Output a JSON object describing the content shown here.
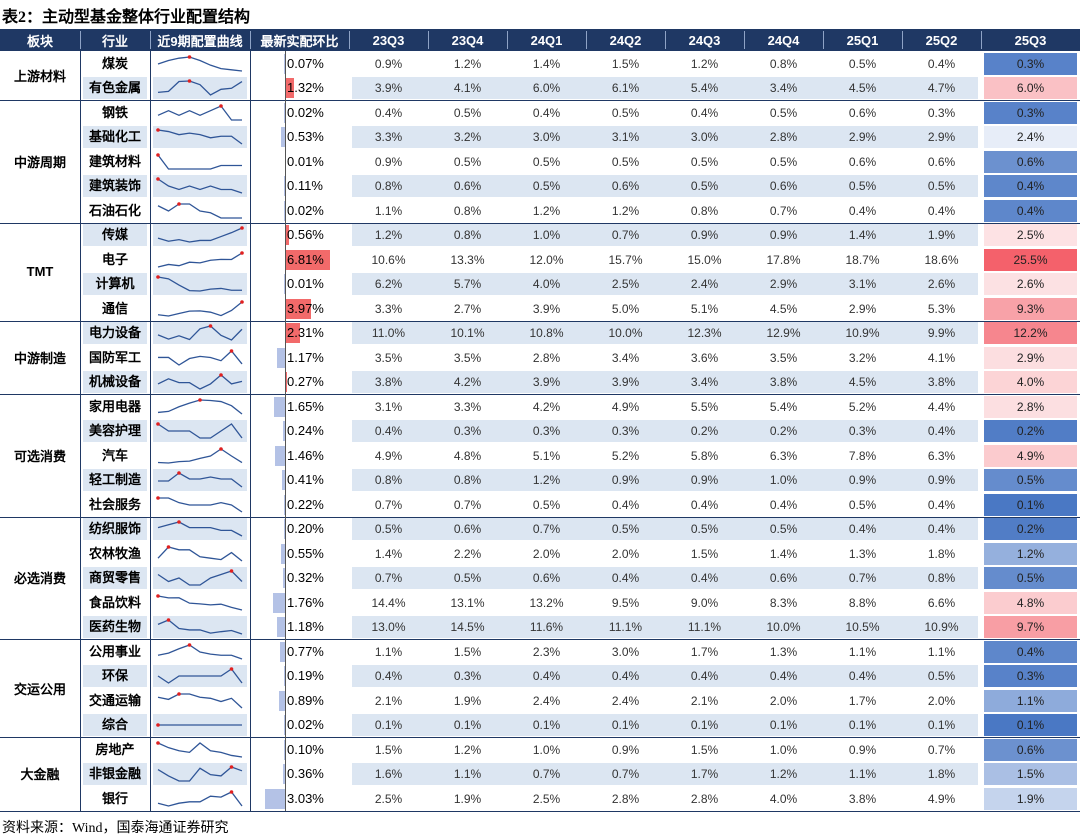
{
  "title": "表2：主动型基金整体行业配置结构",
  "headers": [
    "板块",
    "行业",
    "近9期配置曲线",
    "最新实配环比",
    "23Q3",
    "23Q4",
    "24Q1",
    "24Q2",
    "24Q3",
    "24Q4",
    "25Q1",
    "25Q2",
    "25Q3"
  ],
  "sections": [
    {
      "name": "上游材料",
      "rows": [
        {
          "industry": "煤炭",
          "change": "0.07%",
          "dir": -1,
          "vals": [
            "0.9%",
            "1.2%",
            "1.4%",
            "1.5%",
            "1.2%",
            "0.8%",
            "0.5%",
            "0.4%"
          ],
          "latest": "0.3%"
        },
        {
          "industry": "有色金属",
          "change": "1.32%",
          "dir": 1,
          "vals": [
            "3.9%",
            "4.1%",
            "6.0%",
            "6.1%",
            "5.4%",
            "3.4%",
            "4.5%",
            "4.7%"
          ],
          "latest": "6.0%"
        }
      ]
    },
    {
      "name": "中游周期",
      "rows": [
        {
          "industry": "钢铁",
          "change": "0.02%",
          "dir": -1,
          "vals": [
            "0.4%",
            "0.5%",
            "0.4%",
            "0.5%",
            "0.4%",
            "0.5%",
            "0.6%",
            "0.3%"
          ],
          "latest": "0.3%"
        },
        {
          "industry": "基础化工",
          "change": "0.53%",
          "dir": -1,
          "vals": [
            "3.3%",
            "3.2%",
            "3.0%",
            "3.1%",
            "3.0%",
            "2.8%",
            "2.9%",
            "2.9%"
          ],
          "latest": "2.4%"
        },
        {
          "industry": "建筑材料",
          "change": "0.01%",
          "dir": 1,
          "vals": [
            "0.9%",
            "0.5%",
            "0.5%",
            "0.5%",
            "0.5%",
            "0.5%",
            "0.6%",
            "0.6%"
          ],
          "latest": "0.6%"
        },
        {
          "industry": "建筑装饰",
          "change": "0.11%",
          "dir": -1,
          "vals": [
            "0.8%",
            "0.6%",
            "0.5%",
            "0.6%",
            "0.5%",
            "0.6%",
            "0.5%",
            "0.5%"
          ],
          "latest": "0.4%"
        },
        {
          "industry": "石油石化",
          "change": "0.02%",
          "dir": -1,
          "vals": [
            "1.1%",
            "0.8%",
            "1.2%",
            "1.2%",
            "0.8%",
            "0.7%",
            "0.4%",
            "0.4%"
          ],
          "latest": "0.4%"
        }
      ]
    },
    {
      "name": "TMT",
      "rows": [
        {
          "industry": "传媒",
          "change": "0.56%",
          "dir": 1,
          "vals": [
            "1.2%",
            "0.8%",
            "1.0%",
            "0.7%",
            "0.9%",
            "0.9%",
            "1.4%",
            "1.9%"
          ],
          "latest": "2.5%"
        },
        {
          "industry": "电子",
          "change": "6.81%",
          "dir": 1,
          "vals": [
            "10.6%",
            "13.3%",
            "12.0%",
            "15.7%",
            "15.0%",
            "17.8%",
            "18.7%",
            "18.6%"
          ],
          "latest": "25.5%"
        },
        {
          "industry": "计算机",
          "change": "0.01%",
          "dir": -1,
          "vals": [
            "6.2%",
            "5.7%",
            "4.0%",
            "2.5%",
            "2.4%",
            "2.9%",
            "3.1%",
            "2.6%"
          ],
          "latest": "2.6%"
        },
        {
          "industry": "通信",
          "change": "3.97%",
          "dir": 1,
          "vals": [
            "3.3%",
            "2.7%",
            "3.9%",
            "5.0%",
            "5.1%",
            "4.5%",
            "2.9%",
            "5.3%"
          ],
          "latest": "9.3%"
        }
      ]
    },
    {
      "name": "中游制造",
      "rows": [
        {
          "industry": "电力设备",
          "change": "2.31%",
          "dir": 1,
          "vals": [
            "11.0%",
            "10.1%",
            "10.8%",
            "10.0%",
            "12.3%",
            "12.9%",
            "10.9%",
            "9.9%"
          ],
          "latest": "12.2%"
        },
        {
          "industry": "国防军工",
          "change": "1.17%",
          "dir": -1,
          "vals": [
            "3.5%",
            "3.5%",
            "2.8%",
            "3.4%",
            "3.6%",
            "3.5%",
            "3.2%",
            "4.1%"
          ],
          "latest": "2.9%"
        },
        {
          "industry": "机械设备",
          "change": "0.27%",
          "dir": 1,
          "vals": [
            "3.8%",
            "4.2%",
            "3.9%",
            "3.9%",
            "3.4%",
            "3.8%",
            "4.5%",
            "3.8%"
          ],
          "latest": "4.0%"
        }
      ]
    },
    {
      "name": "可选消费",
      "rows": [
        {
          "industry": "家用电器",
          "change": "1.65%",
          "dir": -1,
          "vals": [
            "3.1%",
            "3.3%",
            "4.2%",
            "4.9%",
            "5.5%",
            "5.4%",
            "5.2%",
            "4.4%"
          ],
          "latest": "2.8%"
        },
        {
          "industry": "美容护理",
          "change": "0.24%",
          "dir": -1,
          "vals": [
            "0.4%",
            "0.3%",
            "0.3%",
            "0.3%",
            "0.2%",
            "0.2%",
            "0.3%",
            "0.4%"
          ],
          "latest": "0.2%"
        },
        {
          "industry": "汽车",
          "change": "1.46%",
          "dir": -1,
          "vals": [
            "4.9%",
            "4.8%",
            "5.1%",
            "5.2%",
            "5.8%",
            "6.3%",
            "7.8%",
            "6.3%"
          ],
          "latest": "4.9%"
        },
        {
          "industry": "轻工制造",
          "change": "0.41%",
          "dir": -1,
          "vals": [
            "0.8%",
            "0.8%",
            "1.2%",
            "0.9%",
            "0.9%",
            "1.0%",
            "0.9%",
            "0.9%"
          ],
          "latest": "0.5%"
        },
        {
          "industry": "社会服务",
          "change": "0.22%",
          "dir": -1,
          "vals": [
            "0.7%",
            "0.7%",
            "0.5%",
            "0.4%",
            "0.4%",
            "0.4%",
            "0.5%",
            "0.4%"
          ],
          "latest": "0.1%"
        }
      ]
    },
    {
      "name": "必选消费",
      "rows": [
        {
          "industry": "纺织服饰",
          "change": "0.20%",
          "dir": -1,
          "vals": [
            "0.5%",
            "0.6%",
            "0.7%",
            "0.5%",
            "0.5%",
            "0.5%",
            "0.4%",
            "0.4%"
          ],
          "latest": "0.2%"
        },
        {
          "industry": "农林牧渔",
          "change": "0.55%",
          "dir": -1,
          "vals": [
            "1.4%",
            "2.2%",
            "2.0%",
            "2.0%",
            "1.5%",
            "1.4%",
            "1.3%",
            "1.8%"
          ],
          "latest": "1.2%"
        },
        {
          "industry": "商贸零售",
          "change": "0.32%",
          "dir": -1,
          "vals": [
            "0.7%",
            "0.5%",
            "0.6%",
            "0.4%",
            "0.4%",
            "0.6%",
            "0.7%",
            "0.8%"
          ],
          "latest": "0.5%"
        },
        {
          "industry": "食品饮料",
          "change": "1.76%",
          "dir": -1,
          "vals": [
            "14.4%",
            "13.1%",
            "13.2%",
            "9.5%",
            "9.0%",
            "8.3%",
            "8.8%",
            "6.6%"
          ],
          "latest": "4.8%"
        },
        {
          "industry": "医药生物",
          "change": "1.18%",
          "dir": -1,
          "vals": [
            "13.0%",
            "14.5%",
            "11.6%",
            "11.1%",
            "11.1%",
            "10.0%",
            "10.5%",
            "10.9%"
          ],
          "latest": "9.7%"
        }
      ]
    },
    {
      "name": "交运公用",
      "rows": [
        {
          "industry": "公用事业",
          "change": "0.77%",
          "dir": -1,
          "vals": [
            "1.1%",
            "1.5%",
            "2.3%",
            "3.0%",
            "1.7%",
            "1.3%",
            "1.1%",
            "1.1%"
          ],
          "latest": "0.4%"
        },
        {
          "industry": "环保",
          "change": "0.19%",
          "dir": -1,
          "vals": [
            "0.4%",
            "0.3%",
            "0.4%",
            "0.4%",
            "0.4%",
            "0.4%",
            "0.4%",
            "0.5%"
          ],
          "latest": "0.3%"
        },
        {
          "industry": "交通运输",
          "change": "0.89%",
          "dir": -1,
          "vals": [
            "2.1%",
            "1.9%",
            "2.4%",
            "2.4%",
            "2.1%",
            "2.0%",
            "1.7%",
            "2.0%"
          ],
          "latest": "1.1%"
        },
        {
          "industry": "综合",
          "change": "0.02%",
          "dir": -1,
          "vals": [
            "0.1%",
            "0.1%",
            "0.1%",
            "0.1%",
            "0.1%",
            "0.1%",
            "0.1%",
            "0.1%"
          ],
          "latest": "0.1%"
        }
      ]
    },
    {
      "name": "大金融",
      "rows": [
        {
          "industry": "房地产",
          "change": "0.10%",
          "dir": -1,
          "vals": [
            "1.5%",
            "1.2%",
            "1.0%",
            "0.9%",
            "1.5%",
            "1.0%",
            "0.9%",
            "0.7%"
          ],
          "latest": "0.6%"
        },
        {
          "industry": "非银金融",
          "change": "0.36%",
          "dir": -1,
          "vals": [
            "1.6%",
            "1.1%",
            "0.7%",
            "0.7%",
            "1.7%",
            "1.2%",
            "1.1%",
            "1.8%"
          ],
          "latest": "1.5%"
        },
        {
          "industry": "银行",
          "change": "3.03%",
          "dir": -1,
          "vals": [
            "2.5%",
            "1.9%",
            "2.5%",
            "2.8%",
            "2.8%",
            "4.0%",
            "3.8%",
            "4.9%"
          ],
          "latest": "1.9%"
        }
      ]
    }
  ],
  "footer": "资料来源：Wind，国泰海通证券研究",
  "colors": {
    "header": "#1f3864",
    "band": "#dce6f2",
    "pos_bar": "#f26a6a",
    "neg_bar": "#b4c2e6",
    "spark": "#2f5597",
    "spark_max": "#e02020",
    "high": "#f4616b",
    "low": "#4a78c4"
  }
}
